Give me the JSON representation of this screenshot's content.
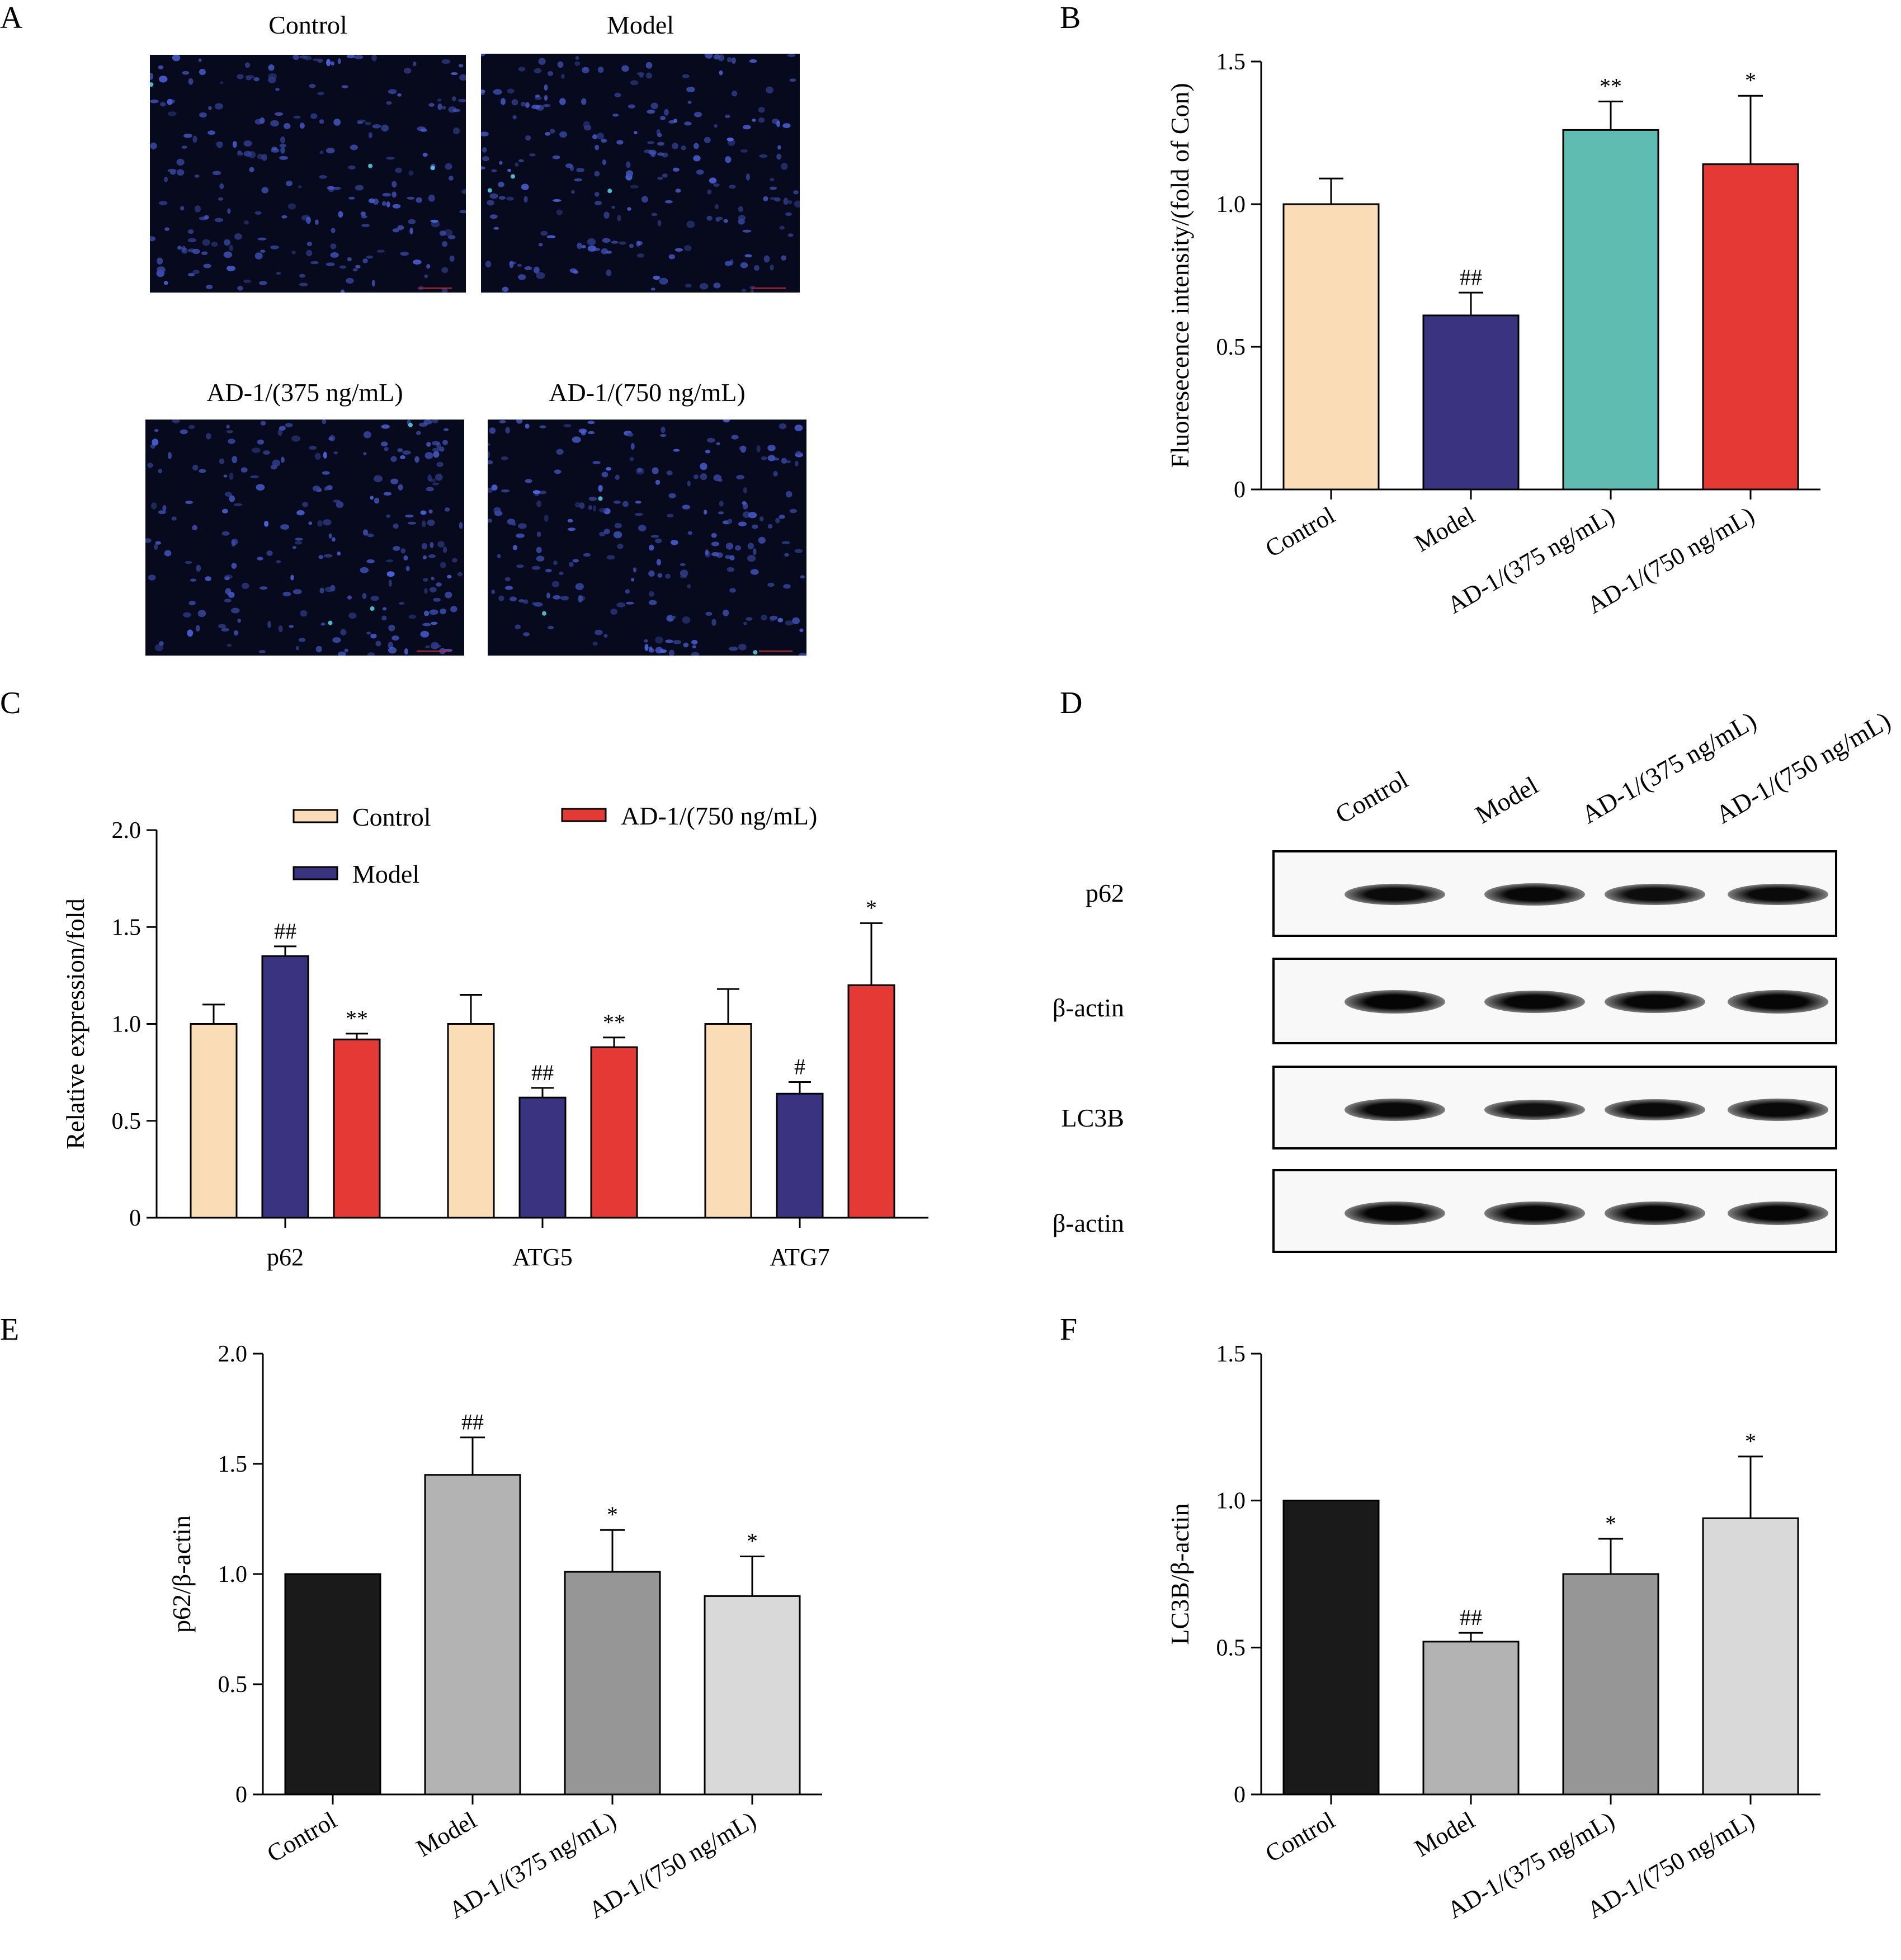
{
  "panels": {
    "A": "A",
    "B": "B",
    "C": "C",
    "D": "D",
    "E": "E",
    "F": "F"
  },
  "panel_a": {
    "images": [
      {
        "label": "Control"
      },
      {
        "label": "Model"
      },
      {
        "label": "AD-1/(375 ng/mL)"
      },
      {
        "label": "AD-1/(750 ng/mL)"
      }
    ]
  },
  "panel_d": {
    "columns": [
      "Control",
      "Model",
      "AD-1/(375 ng/mL)",
      "AD-1/(750 ng/mL)"
    ],
    "rows": [
      {
        "label": "p62",
        "intensity": [
          0.82,
          0.92,
          0.78,
          0.86
        ]
      },
      {
        "label": "β-actin",
        "intensity": [
          1.0,
          0.95,
          0.95,
          0.98
        ]
      },
      {
        "label": "LC3B",
        "intensity": [
          0.9,
          0.7,
          0.85,
          0.88
        ]
      },
      {
        "label": "β-actin",
        "intensity": [
          1.0,
          0.97,
          0.97,
          0.98
        ]
      }
    ]
  },
  "chart_data": [
    {
      "id": "B",
      "type": "bar",
      "ylabel": "Fluoresecence intensity/(fold of Con)",
      "ylim": [
        0,
        1.5
      ],
      "yticks": [
        "0",
        "0.5",
        "1.0",
        "1.5"
      ],
      "categories": [
        "Control",
        "Model",
        "AD-1/(375 ng/mL)",
        "AD-1/(750 ng/mL)"
      ],
      "values": [
        1.0,
        0.61,
        1.26,
        1.14
      ],
      "errors": [
        0.09,
        0.08,
        0.1,
        0.24
      ],
      "annotations": [
        "",
        "##",
        "**",
        "*"
      ],
      "colors": [
        "#fadcb6",
        "#3a3480",
        "#5fbcb0",
        "#e53935"
      ]
    },
    {
      "id": "C",
      "type": "bar",
      "ylabel": "Relative expression/fold",
      "ylim": [
        0,
        2.0
      ],
      "yticks": [
        "0",
        "0.5",
        "1.0",
        "1.5",
        "2.0"
      ],
      "categories": [
        "p62",
        "ATG5",
        "ATG7"
      ],
      "series": [
        {
          "name": "Control",
          "color": "#fadcb6",
          "values": [
            1.0,
            1.0,
            1.0
          ],
          "errors": [
            0.1,
            0.15,
            0.18
          ],
          "annotations": [
            "",
            "",
            ""
          ]
        },
        {
          "name": "Model",
          "color": "#3a3480",
          "values": [
            1.35,
            0.62,
            0.64
          ],
          "errors": [
            0.05,
            0.05,
            0.06
          ],
          "annotations": [
            "##",
            "##",
            "#"
          ]
        },
        {
          "name": "AD-1/(750 ng/mL)",
          "color": "#e53935",
          "values": [
            0.92,
            0.88,
            1.2
          ],
          "errors": [
            0.03,
            0.05,
            0.32
          ],
          "annotations": [
            "**",
            "**",
            "*"
          ]
        }
      ]
    },
    {
      "id": "E",
      "type": "bar",
      "ylabel": "p62/β-actin",
      "ylim": [
        0,
        2.0
      ],
      "yticks": [
        "0",
        "0.5",
        "1.0",
        "1.5",
        "2.0"
      ],
      "categories": [
        "Control",
        "Model",
        "AD-1/(375 ng/mL)",
        "AD-1/(750 ng/mL)"
      ],
      "values": [
        1.0,
        1.45,
        1.01,
        0.9
      ],
      "errors": [
        0.0,
        0.17,
        0.19,
        0.18
      ],
      "annotations": [
        "",
        "##",
        "*",
        "*"
      ],
      "colors": [
        "#1a1a1a",
        "#b3b3b3",
        "#969696",
        "#d9d9d9"
      ]
    },
    {
      "id": "F",
      "type": "bar",
      "ylabel": "LC3B/β-actin",
      "ylim": [
        0,
        1.5
      ],
      "yticks": [
        "0",
        "0.5",
        "1.0",
        "1.5"
      ],
      "categories": [
        "Control",
        "Model",
        "AD-1/(375 ng/mL)",
        "AD-1/(750 ng/mL)"
      ],
      "values": [
        1.0,
        0.52,
        0.75,
        0.94
      ],
      "errors": [
        0.0,
        0.03,
        0.12,
        0.21
      ],
      "annotations": [
        "",
        "##",
        "*",
        "*"
      ],
      "colors": [
        "#1a1a1a",
        "#b3b3b3",
        "#969696",
        "#d9d9d9"
      ]
    }
  ]
}
